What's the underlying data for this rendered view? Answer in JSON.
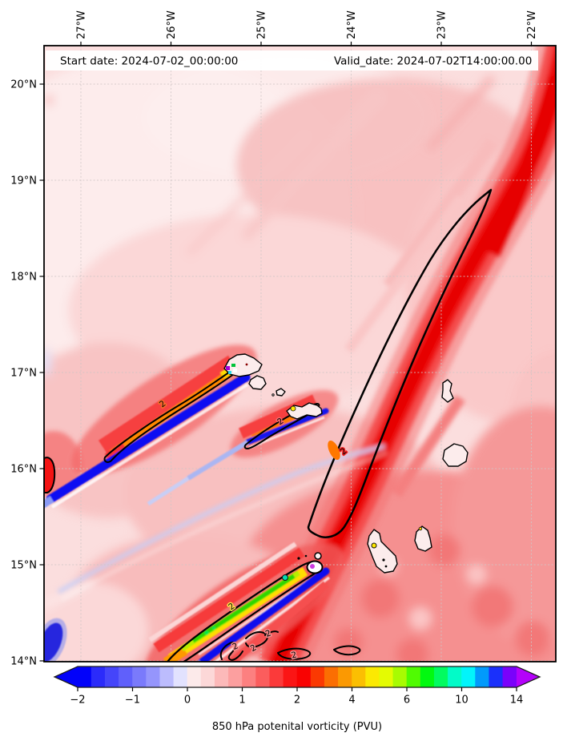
{
  "figure": {
    "header": {
      "start_date_label": "Start date: 2024-07-02_00:00:00",
      "valid_date_label": "Valid_date: 2024-07-02T14:00:00.00"
    },
    "caption": "850 hPa potenital vorticity (PVU)"
  },
  "map": {
    "lon_tick_labels": [
      "27°W",
      "26°W",
      "25°W",
      "24°W",
      "23°W",
      "22°W"
    ],
    "lat_tick_labels": [
      "20°N",
      "19°N",
      "18°N",
      "17°N",
      "16°N",
      "15°N",
      "14°N"
    ],
    "pv_contour_label": "2"
  },
  "colorbar": {
    "tick_labels": [
      "−2",
      "−1",
      "0",
      "1",
      "2",
      "4",
      "6",
      "10",
      "14"
    ],
    "under_color": "#0202fa",
    "over_color": "#b402fa",
    "segment_colors": [
      "#0202fa",
      "#2b2bfa",
      "#4545fa",
      "#6060fb",
      "#7a7afb",
      "#9595fc",
      "#bcbcfd",
      "#e2e2fe",
      "#fceaea",
      "#fcd8d8",
      "#fcb9b9",
      "#fc9f9f",
      "#fc8080",
      "#fb5d5d",
      "#fb3a3a",
      "#fb1515",
      "#f90202",
      "#fb3902",
      "#fb6e02",
      "#fb9902",
      "#fbbf02",
      "#fbe902",
      "#e4fb02",
      "#a8fb02",
      "#50fb02",
      "#02f910",
      "#02fb60",
      "#02fbc8",
      "#02f4fb",
      "#029afb",
      "#1a30fb",
      "#7a02fb"
    ]
  },
  "chart_data": {
    "type": "heatmap",
    "title": "850 hPa potenital vorticity (PVU)",
    "start_date_text": "Start date: 2024-07-02_00:00:00",
    "valid_date_text": "Valid_date: 2024-07-02T14:00:00.00",
    "x_ticks": [
      "27°W",
      "26°W",
      "25°W",
      "24°W",
      "23°W",
      "22°W"
    ],
    "y_ticks": [
      "20°N",
      "19°N",
      "18°N",
      "17°N",
      "16°N",
      "15°N",
      "14°N"
    ],
    "colorbar_ticks": [
      -2,
      -1,
      0,
      1,
      2,
      4,
      6,
      10,
      14
    ],
    "colorbar_label": "850 hPa potenital vorticity (PVU)",
    "units": "PVU",
    "contour_level": 2,
    "grid": true,
    "legend": false,
    "notes": [
      "Filled PV field: mostly light-to-medium red shades (0 to 2 PVU) over ocean",
      "Dark red high-PV band (>2 PVU, outlined by thick black contour labeled 2) arcs from ~24°W,14°N up to the northeast corner near 22°W,20°N",
      "Island wake streaks SW of the Cape Verde islands: negative PV (blue) flanking elevated PV (orange/yellow/green) behind Santo Antao (~17°N,25.5°W), Sao Nicolau (~16.5°N,24.3°W) and Fogo (~14.9°N,24.4°W)",
      "Black island coastlines; several small closed PV=2 contours labeled 2 near 14-14.5°N between 25°W and 23.5°W"
    ]
  }
}
